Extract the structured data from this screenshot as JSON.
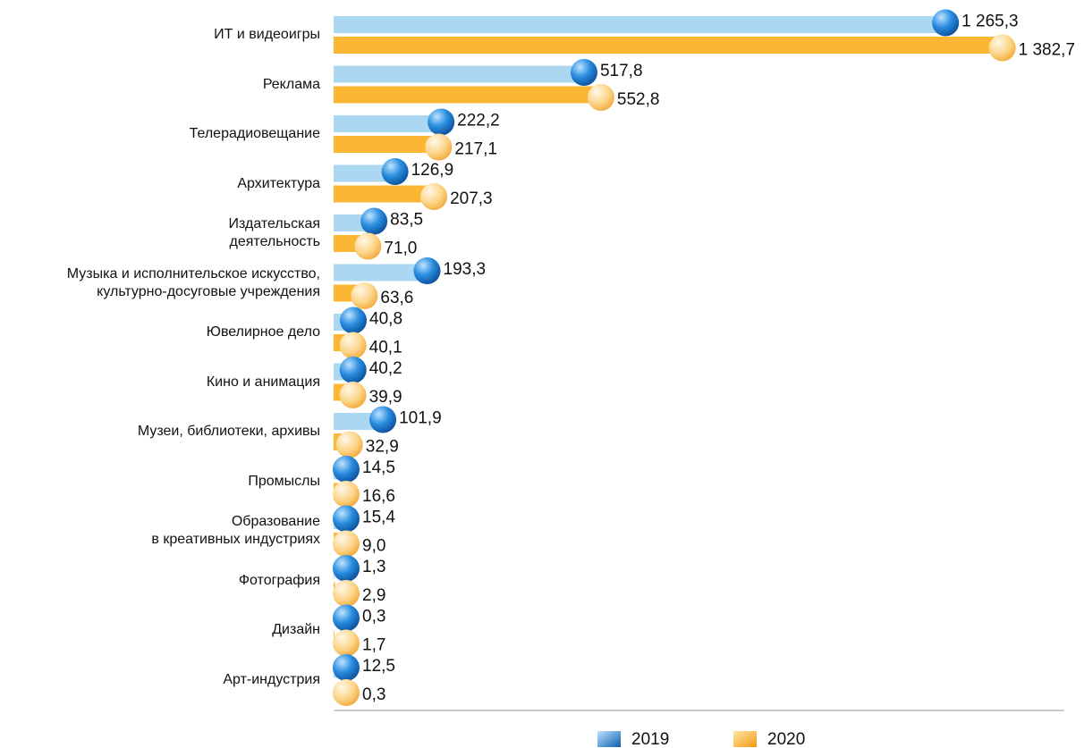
{
  "chart_data": {
    "type": "bar",
    "orientation": "horizontal",
    "categories": [
      "ИТ и видеоигры",
      "Реклама",
      "Телерадиовещание",
      "Архитектура",
      "Издательская\nдеятельность",
      "Музыка и исполнительское искусство,\nкультурно-досуговые учреждения",
      "Ювелирное дело",
      "Кино и анимация",
      "Музеи, библиотеки, архивы",
      "Промыслы",
      "Образование\nв креативных индустриях",
      "Фотография",
      "Дизайн",
      "Арт-индустрия"
    ],
    "series": [
      {
        "name": "2019",
        "color": "#acd7f2",
        "marker_color": "#1f7fd0",
        "values": [
          1265.3,
          517.8,
          222.2,
          126.9,
          83.5,
          193.3,
          40.8,
          40.2,
          101.9,
          14.5,
          15.4,
          1.3,
          0.3,
          12.5
        ],
        "value_labels": [
          "1 265,3",
          "517,8",
          "222,2",
          "126,9",
          "83,5",
          "193,3",
          "40,8",
          "40,2",
          "101,9",
          "14,5",
          "15,4",
          "1,3",
          "0,3",
          "12,5"
        ]
      },
      {
        "name": "2020",
        "color": "#fbb733",
        "marker_color": "#fcd488",
        "values": [
          1382.7,
          552.8,
          217.1,
          207.3,
          71.0,
          63.6,
          40.1,
          39.9,
          32.9,
          16.6,
          9.0,
          2.9,
          1.7,
          0.3
        ],
        "value_labels": [
          "1 382,7",
          "552,8",
          "217,1",
          "207,3",
          "71,0",
          "63,6",
          "40,1",
          "39,9",
          "32,9",
          "16,6",
          "9,0",
          "2,9",
          "1,7",
          "0,3"
        ]
      }
    ],
    "xlim": [
      0,
      1400
    ]
  }
}
